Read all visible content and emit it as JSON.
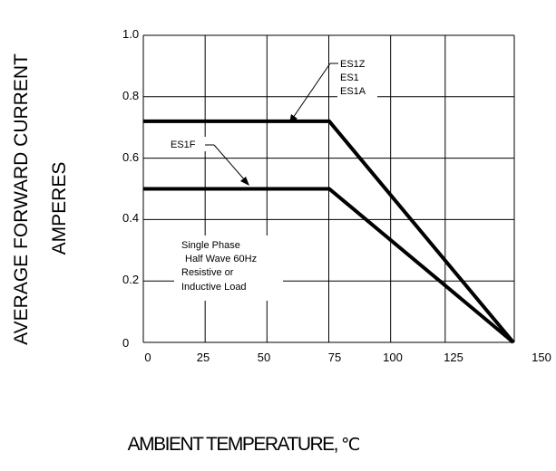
{
  "chart_data": {
    "type": "line",
    "ylabel_line1": "AVERAGE FORWARD CURRENT",
    "ylabel_line2": "AMPERES",
    "xlabel": "AMBIENT TEMPERATURE,",
    "xunit": "℃",
    "xlim": [
      0,
      150
    ],
    "ylim": [
      0,
      1.0
    ],
    "x_ticks": [
      0,
      25,
      50,
      75,
      100,
      125,
      150
    ],
    "x_tick_labels": [
      "0",
      "25",
      "50",
      "75",
      "100",
      "125",
      "150"
    ],
    "y_ticks": [
      0,
      0.2,
      0.4,
      0.6,
      0.8,
      1.0
    ],
    "y_tick_labels": [
      "0",
      "0.2",
      "0.4",
      "0.6",
      "0.8",
      "1.0"
    ],
    "grid": true,
    "series": [
      {
        "name": "ES1Z ES1 ES1A",
        "x": [
          0,
          75,
          150
        ],
        "y": [
          0.72,
          0.72,
          0
        ]
      },
      {
        "name": "ES1F",
        "x": [
          0,
          75,
          150
        ],
        "y": [
          0.5,
          0.5,
          0
        ]
      }
    ],
    "annotations": {
      "series1_label": [
        "ES1Z",
        "ES1",
        "ES1A"
      ],
      "series2_label": "ES1F",
      "note": [
        "Single Phase",
        "Half Wave 60Hz",
        "Resistive or",
        "Inductive Load"
      ]
    }
  }
}
